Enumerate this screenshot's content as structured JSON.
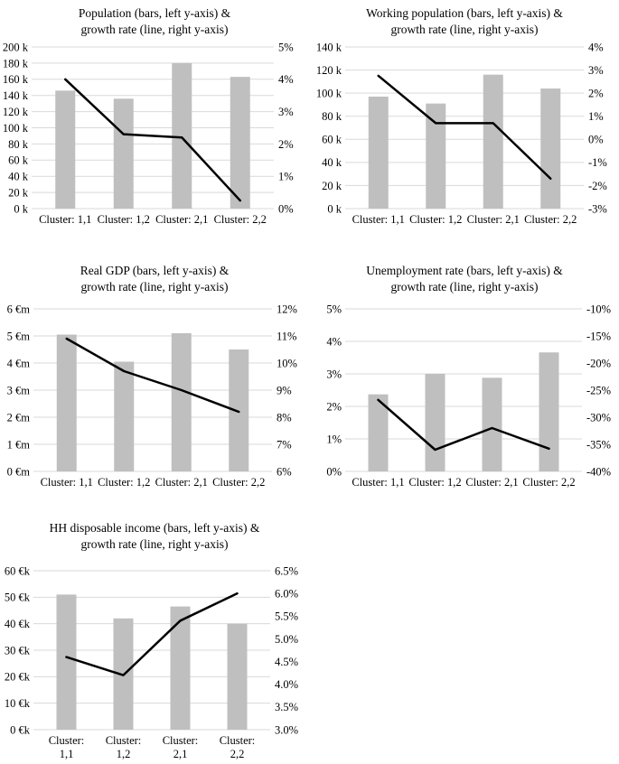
{
  "page": {
    "background": "#ffffff"
  },
  "colors": {
    "bar": "#BFBFBF",
    "line": "#000000",
    "gridline": "#D9D9D9",
    "text": "#000000"
  },
  "chart_data": [
    {
      "type": "bar+line",
      "title": "Population (bars, left y-axis) &\ngrowth rate (line, right y-axis)",
      "categories": [
        "Cluster: 1,1",
        "Cluster: 1,2",
        "Cluster: 2,1",
        "Cluster: 2,2"
      ],
      "bar_series": {
        "name": "Population",
        "values": [
          146000,
          136000,
          180000,
          163000
        ]
      },
      "line_series": {
        "name": "growth rate",
        "values": [
          4.0,
          2.3,
          2.2,
          0.25
        ]
      },
      "left_axis": {
        "min": 0,
        "max": 200000,
        "tick_values": [
          0,
          20000,
          40000,
          60000,
          80000,
          100000,
          120000,
          140000,
          160000,
          180000,
          200000
        ],
        "tick_labels": [
          "0 k",
          "20 k",
          "40 k",
          "60 k",
          "80 k",
          "100 k",
          "120 k",
          "140 k",
          "160 k",
          "180 k",
          "200 k"
        ]
      },
      "right_axis": {
        "min": 0,
        "max": 5,
        "tick_values": [
          0,
          1,
          2,
          3,
          4,
          5
        ],
        "tick_labels": [
          "0%",
          "1%",
          "2%",
          "3%",
          "4%",
          "5%"
        ]
      },
      "grid": true,
      "legend": "none"
    },
    {
      "type": "bar+line",
      "title": "Working population (bars, left y-axis) &\ngrowth rate (line, right y-axis)",
      "categories": [
        "Cluster: 1,1",
        "Cluster: 1,2",
        "Cluster: 2,1",
        "Cluster: 2,2"
      ],
      "bar_series": {
        "name": "Working population",
        "values": [
          97000,
          91000,
          116000,
          104000
        ]
      },
      "line_series": {
        "name": "growth rate",
        "values": [
          2.75,
          0.7,
          0.7,
          -1.7
        ]
      },
      "left_axis": {
        "min": 0,
        "max": 140000,
        "tick_values": [
          0,
          20000,
          40000,
          60000,
          80000,
          100000,
          120000,
          140000
        ],
        "tick_labels": [
          "0 k",
          "20 k",
          "40 k",
          "60 k",
          "80 k",
          "100 k",
          "120 k",
          "140 k"
        ]
      },
      "right_axis": {
        "min": -3,
        "max": 4,
        "tick_values": [
          -3,
          -2,
          -1,
          0,
          1,
          2,
          3,
          4
        ],
        "tick_labels": [
          "-3%",
          "-2%",
          "-1%",
          "0%",
          "1%",
          "2%",
          "3%",
          "4%"
        ]
      },
      "grid": true,
      "legend": "none"
    },
    {
      "type": "bar+line",
      "title": "Real GDP (bars, left y-axis) &\ngrowth rate (line, right y-axis)",
      "categories": [
        "Cluster: 1,1",
        "Cluster: 1,2",
        "Cluster: 2,1",
        "Cluster: 2,2"
      ],
      "bar_series": {
        "name": "Real GDP",
        "values": [
          5.05,
          4.05,
          5.1,
          4.5
        ]
      },
      "line_series": {
        "name": "growth rate",
        "values": [
          10.9,
          9.7,
          9.0,
          8.2
        ]
      },
      "left_axis": {
        "min": 0,
        "max": 6,
        "tick_values": [
          0,
          1,
          2,
          3,
          4,
          5,
          6
        ],
        "tick_labels": [
          "0 €m",
          "1 €m",
          "2 €m",
          "3 €m",
          "4 €m",
          "5 €m",
          "6 €m"
        ]
      },
      "right_axis": {
        "min": 6,
        "max": 12,
        "tick_values": [
          6,
          7,
          8,
          9,
          10,
          11,
          12
        ],
        "tick_labels": [
          "6%",
          "7%",
          "8%",
          "9%",
          "10%",
          "11%",
          "12%"
        ]
      },
      "grid": true,
      "legend": "none"
    },
    {
      "type": "bar+line",
      "title": "Unemployment rate (bars, left y-axis) &\ngrowth rate (line, right y-axis)",
      "categories": [
        "Cluster: 1,1",
        "Cluster: 1,2",
        "Cluster: 2,1",
        "Cluster: 2,2"
      ],
      "bar_series": {
        "name": "Unemployment rate",
        "values": [
          2.37,
          3.0,
          2.88,
          3.66
        ]
      },
      "line_series": {
        "name": "growth rate",
        "values": [
          -26.8,
          -36.0,
          -32.0,
          -35.8
        ]
      },
      "left_axis": {
        "min": 0,
        "max": 5,
        "tick_values": [
          0,
          1,
          2,
          3,
          4,
          5
        ],
        "tick_labels": [
          "0%",
          "1%",
          "2%",
          "3%",
          "4%",
          "5%"
        ]
      },
      "right_axis": {
        "min": -40,
        "max": -10,
        "tick_values": [
          -40,
          -35,
          -30,
          -25,
          -20,
          -15,
          -10
        ],
        "tick_labels": [
          "-40%",
          "-35%",
          "-30%",
          "-25%",
          "-20%",
          "-15%",
          "-10%"
        ]
      },
      "grid": true,
      "legend": "none"
    },
    {
      "type": "bar+line",
      "title": "HH disposable income (bars, left y-axis) &\ngrowth rate (line, right y-axis)",
      "categories": [
        "Cluster:\n1,1",
        "Cluster:\n1,2",
        "Cluster:\n2,1",
        "Cluster:\n2,2"
      ],
      "bar_series": {
        "name": "HH disposable income",
        "values": [
          51,
          42,
          46.5,
          40
        ]
      },
      "line_series": {
        "name": "growth rate",
        "values": [
          4.6,
          4.2,
          5.4,
          6.0
        ]
      },
      "left_axis": {
        "min": 0,
        "max": 60,
        "tick_values": [
          0,
          10,
          20,
          30,
          40,
          50,
          60
        ],
        "tick_labels": [
          "0 €k",
          "10 €k",
          "20 €k",
          "30 €k",
          "40 €k",
          "50 €k",
          "60 €k"
        ]
      },
      "right_axis": {
        "min": 3.0,
        "max": 6.5,
        "tick_values": [
          3.0,
          3.5,
          4.0,
          4.5,
          5.0,
          5.5,
          6.0,
          6.5
        ],
        "tick_labels": [
          "3.0%",
          "3.5%",
          "4.0%",
          "4.5%",
          "5.0%",
          "5.5%",
          "6.0%",
          "6.5%"
        ]
      },
      "grid": true,
      "legend": "none"
    }
  ]
}
